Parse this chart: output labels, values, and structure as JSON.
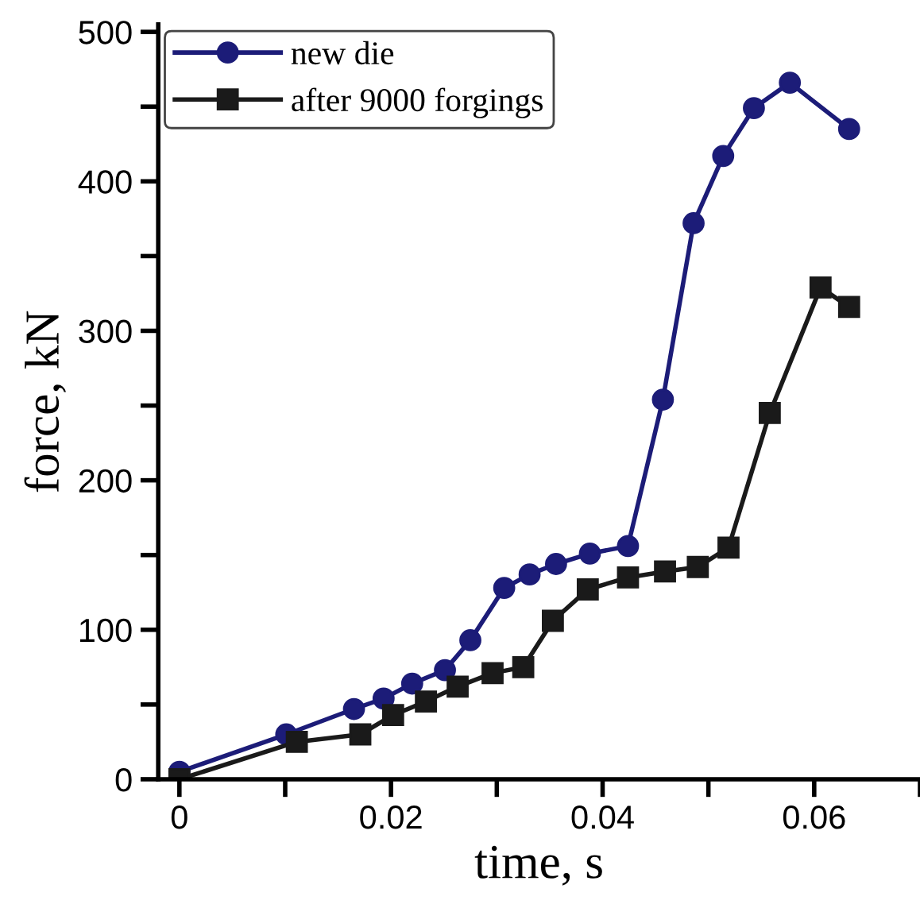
{
  "chart_data": {
    "type": "line",
    "xlabel": "time, s",
    "ylabel": "force, kN",
    "xlim": [
      -0.002,
      0.07
    ],
    "ylim": [
      0,
      505
    ],
    "xticks": [
      0,
      {
        "value": 0.01,
        "label": null
      },
      0.02,
      {
        "value": 0.03,
        "label": null
      },
      0.04,
      {
        "value": 0.05,
        "label": null
      },
      0.06,
      {
        "value": 0.07,
        "label": null
      }
    ],
    "yticks": [
      0,
      {
        "value": 50,
        "label": null
      },
      100,
      {
        "value": 150,
        "label": null
      },
      200,
      {
        "value": 250,
        "label": null
      },
      300,
      {
        "value": 350,
        "label": null
      },
      400,
      {
        "value": 450,
        "label": null
      },
      500
    ],
    "legend": "top left",
    "grid": false,
    "series": [
      {
        "name": "new die",
        "color": "#1c1c78",
        "marker": "circle",
        "x": [
          0,
          0.0101,
          0.0165,
          0.0193,
          0.022,
          0.0251,
          0.0275,
          0.0307,
          0.0331,
          0.0356,
          0.0388,
          0.0424,
          0.0457,
          0.0486,
          0.0514,
          0.0543,
          0.0577,
          0.0633
        ],
        "values": [
          5,
          30,
          47,
          54,
          64,
          73,
          93,
          128,
          137,
          144,
          151,
          156,
          254,
          372,
          417,
          449,
          466,
          435
        ]
      },
      {
        "name": "after 9000 forgings",
        "color": "#1a1a1a",
        "marker": "square",
        "x": [
          0,
          0.0111,
          0.0171,
          0.0202,
          0.0233,
          0.0263,
          0.0296,
          0.0325,
          0.0353,
          0.0386,
          0.0424,
          0.0459,
          0.049,
          0.0519,
          0.0558,
          0.0606,
          0.0633
        ],
        "values": [
          0,
          25,
          30,
          43,
          52,
          62,
          71,
          75,
          106,
          127,
          135,
          139,
          142,
          155,
          245,
          329,
          316
        ]
      }
    ]
  }
}
